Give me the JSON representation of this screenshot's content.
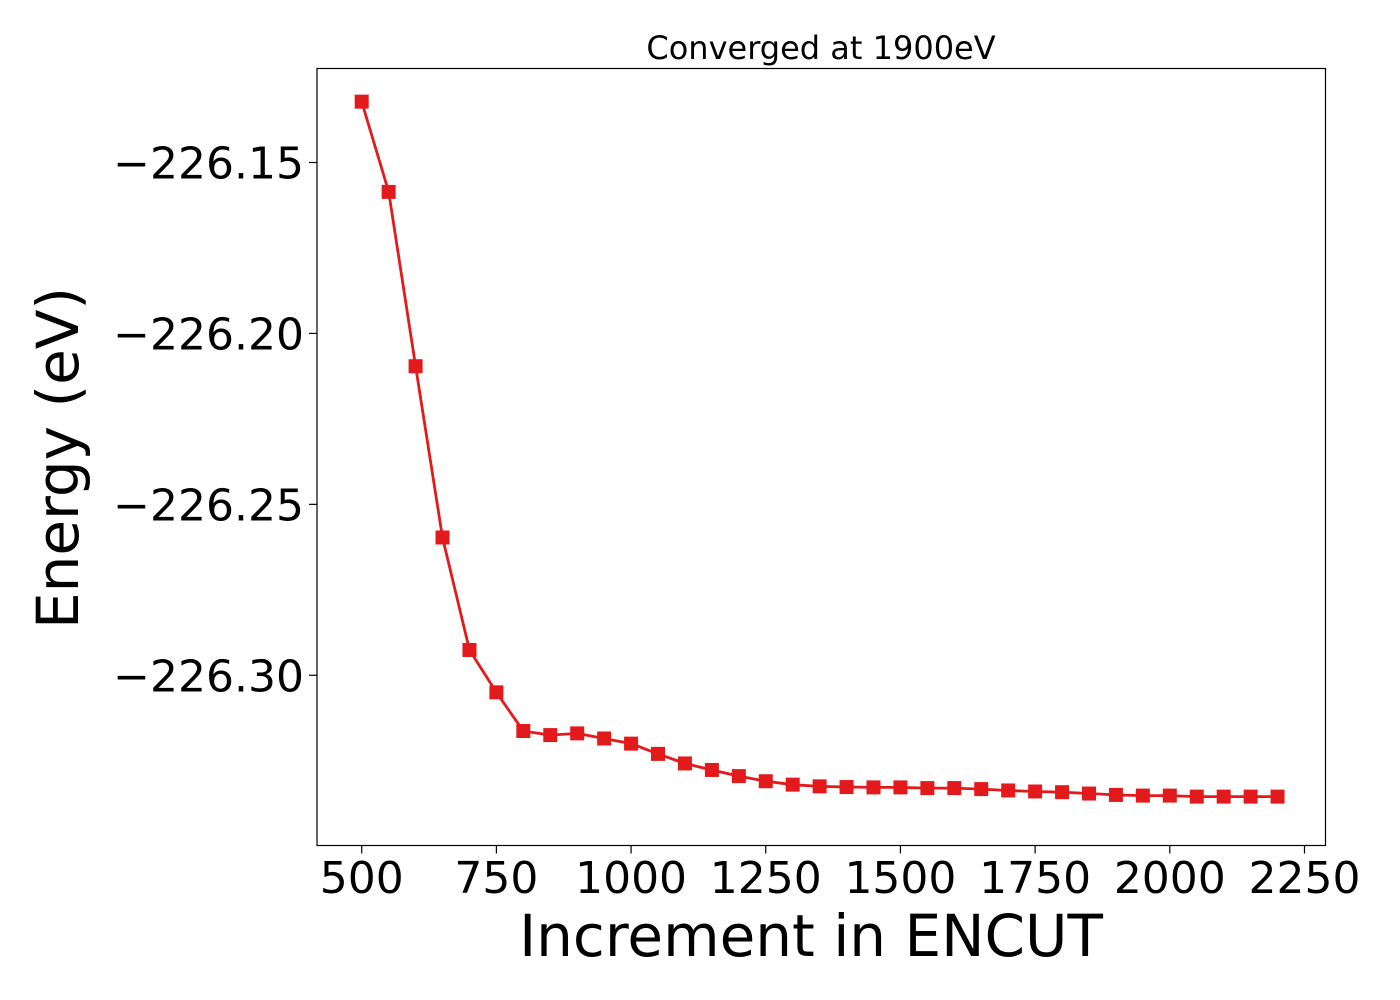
{
  "chart_data": {
    "type": "line",
    "title": "Converged at 1900eV",
    "xlabel": "Increment in ENCUT",
    "ylabel": "Energy (eV)",
    "xlim": [
      417,
      2289
    ],
    "ylim": [
      -226.3498,
      -226.1225
    ],
    "xticks": [
      500,
      750,
      1000,
      1250,
      1500,
      1750,
      2000,
      2250
    ],
    "xtick_labels": [
      "500",
      "750",
      "1000",
      "1250",
      "1500",
      "1750",
      "2000",
      "2250"
    ],
    "yticks": [
      -226.15,
      -226.2,
      -226.25,
      -226.3
    ],
    "ytick_labels": [
      "−226.15",
      "−226.20",
      "−226.25",
      "−226.30"
    ],
    "grid": false,
    "legend": "none",
    "series": [
      {
        "color": "#e31a1c",
        "marker": "square",
        "x": [
          500,
          550,
          600,
          650,
          700,
          750,
          800,
          850,
          900,
          950,
          1000,
          1050,
          1100,
          1150,
          1200,
          1250,
          1300,
          1350,
          1400,
          1450,
          1500,
          1550,
          1600,
          1650,
          1700,
          1750,
          1800,
          1850,
          1900,
          1950,
          2000,
          2050,
          2100,
          2150,
          2200
        ],
        "values": [
          -226.1322,
          -226.1586,
          -226.2096,
          -226.2597,
          -226.2926,
          -226.305,
          -226.3163,
          -226.3175,
          -226.317,
          -226.3185,
          -226.32,
          -226.323,
          -226.3258,
          -226.3277,
          -226.3295,
          -226.331,
          -226.332,
          -226.3325,
          -226.3327,
          -226.3328,
          -226.3328,
          -226.333,
          -226.333,
          -226.3333,
          -226.3337,
          -226.334,
          -226.3342,
          -226.3346,
          -226.335,
          -226.3352,
          -226.3352,
          -226.3355,
          -226.3355,
          -226.3355,
          -226.3355
        ]
      }
    ]
  }
}
